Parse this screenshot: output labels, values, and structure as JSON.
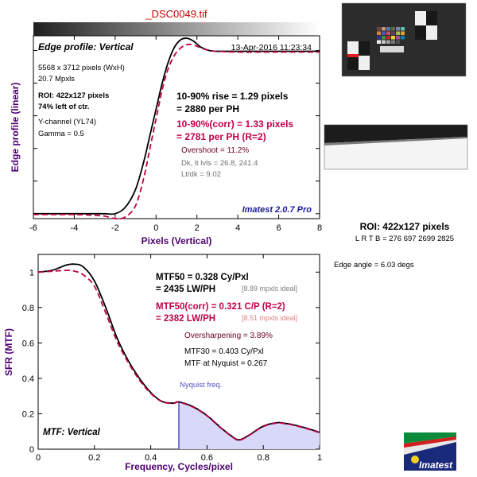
{
  "file_title": "_DSC0049.tif",
  "colors": {
    "title_red": "#cc0000",
    "axis_label_purple": "#4d0070",
    "corr_red": "#c0004a",
    "black_curve": "#000000",
    "imatest_blue": "#1a1a9a",
    "nyquist_fill": "#d8d8f8",
    "nyquist_line": "#5050c0"
  },
  "edge_panel": {
    "heading": "Edge profile: Vertical",
    "timestamp": "13-Apr-2016 11:23:34",
    "info_lines": [
      "5568 x 3712 pixels (WxH)",
      "20.7 Mpxls"
    ],
    "roi_lines": [
      "ROI: 422x127 pixels",
      "74% left of ctr."
    ],
    "channel_lines": [
      "Y-channel  (YL74)",
      "Gamma = 0.5"
    ],
    "rise_lines": [
      "10-90% rise = 1.29 pixels",
      "= 2880 per PH"
    ],
    "corr_lines": [
      "10-90%(corr) = 1.33 pixels",
      "= 2781 per PH   (R=2)"
    ],
    "overshoot": "Overshoot = 11.2%",
    "dk_lines": [
      "Dk, lt lvls = 26.8, 241.4",
      "Lt/dk = 9.02"
    ],
    "brand": "Imatest 2.0.7 Pro",
    "ylabel": "Edge profile (linear)",
    "xlabel": "Pixels (Vertical)"
  },
  "mtf_panel": {
    "heading": "MTF: Vertical",
    "ylabel": "SFR (MTF)",
    "xlabel": "Frequency, Cycles/pixel",
    "mtf50_lines": [
      "MTF50 = 0.328 Cy/Pxl",
      "= 2435 LW/PH"
    ],
    "mtf50_ideal": "[8.89 mpxls ideal]",
    "mtf50corr_lines": [
      "MTF50(corr) = 0.321 C/P  (R=2)",
      "= 2382 LW/PH"
    ],
    "mtf50corr_ideal": "[8.51 mpxls ideal]",
    "oversharpening": "Oversharpening = 3.89%",
    "mtf30": "MTF30 = 0.403 Cy/Pxl",
    "nyquist_mtf": "MTF at Nyquist = 0.267",
    "nyquist_label": "Nyquist freq."
  },
  "side": {
    "roi_heading": "ROI: 422x127 pixels",
    "roi_coords": "L  R  T  B = 276 697   2699 2825",
    "edge_angle": "Edge angle = 6.03 degs",
    "logo_text": "Imatest"
  },
  "chart_data": [
    {
      "type": "line",
      "title": "Edge profile: Vertical",
      "xlabel": "Pixels (Vertical)",
      "ylabel": "Edge profile (linear)",
      "xlim": [
        -6,
        8
      ],
      "ylim": [
        -0.03,
        1.09
      ],
      "xticks": [
        -6,
        -4,
        -2,
        0,
        2,
        4,
        6,
        8
      ],
      "xtick_labels": [
        "-6",
        "-4",
        "-2",
        "0",
        "2",
        "4",
        "6",
        "8"
      ],
      "grid": false,
      "x": [
        -6,
        -4,
        -3,
        -2.5,
        -2,
        -1.5,
        -1,
        -0.6,
        -0.3,
        0,
        0.3,
        0.6,
        0.9,
        1.2,
        1.5,
        1.8,
        2.2,
        2.6,
        3,
        4,
        5,
        6,
        8
      ],
      "series": [
        {
          "y": [
            0.0,
            0.0,
            0.0,
            0.0,
            0.0,
            0.04,
            0.15,
            0.32,
            0.48,
            0.64,
            0.8,
            0.93,
            1.02,
            1.065,
            1.075,
            1.06,
            1.02,
            1.0,
            0.995,
            0.995,
            0.995,
            0.995,
            0.995
          ]
        },
        {
          "y": [
            -0.005,
            -0.005,
            -0.01,
            -0.015,
            -0.03,
            -0.02,
            0.05,
            0.22,
            0.4,
            0.58,
            0.76,
            0.89,
            0.97,
            1.015,
            1.035,
            1.035,
            1.015,
            1.0,
            0.995,
            0.99,
            0.99,
            0.99,
            0.99
          ]
        }
      ]
    },
    {
      "type": "line",
      "title": "MTF: Vertical",
      "xlabel": "Frequency, Cycles/pixel",
      "ylabel": "SFR (MTF)",
      "xlim": [
        0,
        1
      ],
      "ylim": [
        0,
        1.1
      ],
      "xticks": [
        0,
        0.2,
        0.4,
        0.6,
        0.8,
        1
      ],
      "xtick_labels": [
        "0",
        "0.2",
        "0.4",
        "0.6",
        "0.8",
        "1"
      ],
      "yticks": [
        0,
        0.2,
        0.4,
        0.6,
        0.8,
        1
      ],
      "ytick_labels": [
        "0",
        "0.2",
        "0.4",
        "0.6",
        "0.8",
        "1"
      ],
      "grid": false,
      "nyquist": 0.5,
      "x": [
        0,
        0.05,
        0.1,
        0.13,
        0.16,
        0.2,
        0.24,
        0.28,
        0.32,
        0.36,
        0.4,
        0.44,
        0.48,
        0.5,
        0.55,
        0.6,
        0.65,
        0.7,
        0.72,
        0.75,
        0.8,
        0.85,
        0.88,
        0.9,
        0.95,
        1.0
      ],
      "series": [
        {
          "y": [
            1.0,
            1.01,
            1.04,
            1.045,
            1.03,
            0.95,
            0.8,
            0.63,
            0.5,
            0.4,
            0.32,
            0.27,
            0.26,
            0.267,
            0.24,
            0.19,
            0.12,
            0.06,
            0.055,
            0.08,
            0.13,
            0.15,
            0.145,
            0.14,
            0.12,
            0.095
          ]
        },
        {
          "y": [
            1.0,
            1.005,
            1.01,
            1.005,
            0.985,
            0.92,
            0.77,
            0.61,
            0.49,
            0.39,
            0.315,
            0.268,
            0.258,
            0.265,
            0.238,
            0.188,
            0.118,
            0.058,
            0.053,
            0.078,
            0.128,
            0.148,
            0.143,
            0.138,
            0.118,
            0.093
          ]
        }
      ]
    }
  ]
}
